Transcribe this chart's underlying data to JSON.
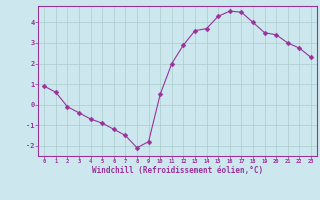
{
  "x": [
    0,
    1,
    2,
    3,
    4,
    5,
    6,
    7,
    8,
    9,
    10,
    11,
    12,
    13,
    14,
    15,
    16,
    17,
    18,
    19,
    20,
    21,
    22,
    23
  ],
  "y": [
    0.9,
    0.6,
    -0.1,
    -0.4,
    -0.7,
    -0.9,
    -1.2,
    -1.5,
    -2.1,
    -1.8,
    0.5,
    2.0,
    2.9,
    3.6,
    3.7,
    4.3,
    4.55,
    4.5,
    4.0,
    3.5,
    3.4,
    3.0,
    2.75,
    2.3
  ],
  "line_color": "#993399",
  "marker": "D",
  "markersize": 2.5,
  "bg_color": "#cce8ee",
  "grid_color": "#aacccc",
  "xlabel": "Windchill (Refroidissement éolien,°C)",
  "xlabel_color": "#993399",
  "tick_color": "#993399",
  "axis_color": "#993399",
  "ylim": [
    -2.5,
    4.8
  ],
  "xlim": [
    -0.5,
    23.5
  ],
  "yticks": [
    -2,
    -1,
    0,
    1,
    2,
    3,
    4
  ],
  "xticks": [
    0,
    1,
    2,
    3,
    4,
    5,
    6,
    7,
    8,
    9,
    10,
    11,
    12,
    13,
    14,
    15,
    16,
    17,
    18,
    19,
    20,
    21,
    22,
    23
  ]
}
